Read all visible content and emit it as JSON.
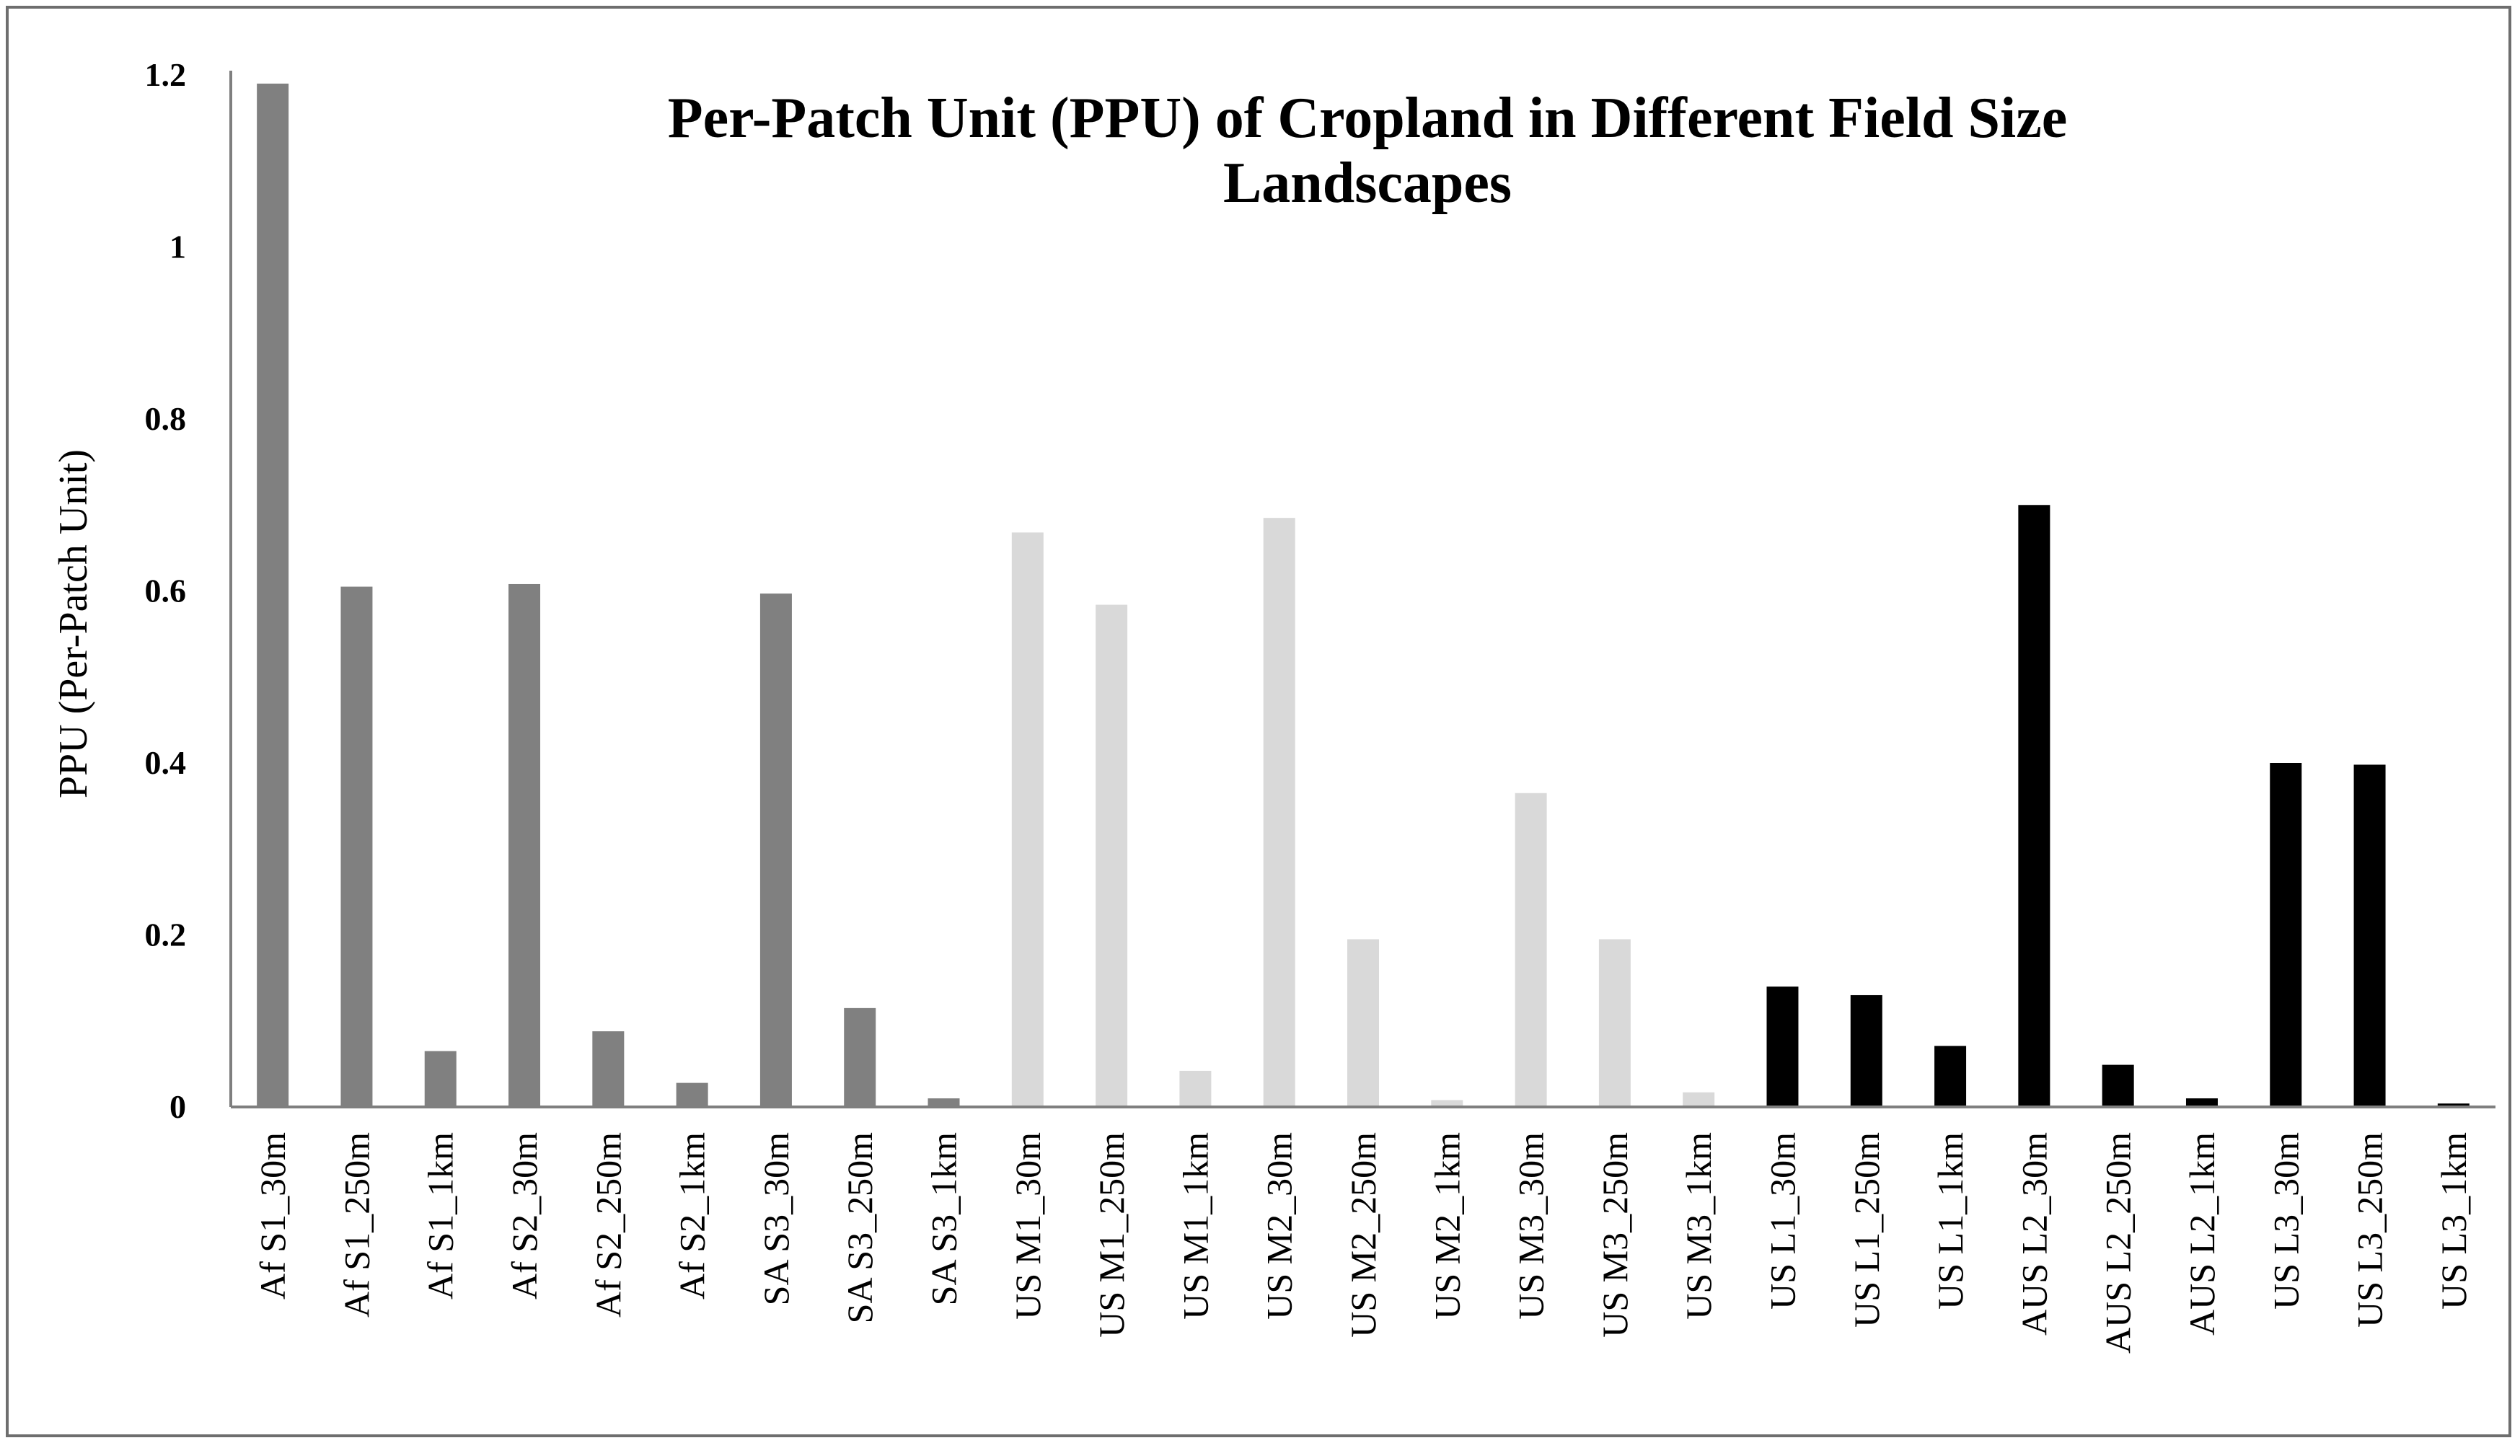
{
  "chart_data": {
    "type": "bar",
    "title_lines": [
      "Per-Patch Unit (PPU) of Cropland in Different Field Size",
      "Landscapes"
    ],
    "xlabel": "",
    "ylabel": "PPU (Per-Patch Unit)",
    "ylim": [
      0,
      1.2
    ],
    "yticks": [
      0,
      0.2,
      0.4,
      0.6,
      0.8,
      1,
      1.2
    ],
    "ytick_labels": [
      "0",
      "0.2",
      "0.4",
      "0.6",
      "0.8",
      "1",
      "1.2"
    ],
    "grid": false,
    "legend": "none",
    "categories": [
      "Af S1_30m",
      "Af S1_250m",
      "Af S1_1km",
      "Af S2_30m",
      "Af S2_250m",
      "Af S2_1km",
      "SA S3_30m",
      "SA S3_250m",
      "SA S3_1km",
      "US M1_30m",
      "US M1_250m",
      "US M1_1km",
      "US M2_30m",
      "US M2_250m",
      "US M2_1km",
      "US M3_30m",
      "US M3_250m",
      "US M3_1km",
      "US L1_30m",
      "US L1_250m",
      "US L1_1km",
      "AUS L2_30m",
      "AUS L2_250m",
      "AUS L2_1km",
      "US L3_30m",
      "US L3_250m",
      "US L3_1km"
    ],
    "values": [
      1.19,
      0.605,
      0.065,
      0.608,
      0.088,
      0.028,
      0.597,
      0.115,
      0.01,
      0.668,
      0.584,
      0.042,
      0.685,
      0.195,
      0.008,
      0.365,
      0.195,
      0.017,
      0.14,
      0.13,
      0.071,
      0.7,
      0.049,
      0.01,
      0.4,
      0.398,
      0.004
    ],
    "bar_colors": [
      "#808080",
      "#808080",
      "#808080",
      "#808080",
      "#808080",
      "#808080",
      "#808080",
      "#808080",
      "#808080",
      "#d9d9d9",
      "#d9d9d9",
      "#d9d9d9",
      "#d9d9d9",
      "#d9d9d9",
      "#d9d9d9",
      "#d9d9d9",
      "#d9d9d9",
      "#d9d9d9",
      "#000000",
      "#000000",
      "#000000",
      "#000000",
      "#000000",
      "#000000",
      "#000000",
      "#000000",
      "#000000"
    ]
  }
}
